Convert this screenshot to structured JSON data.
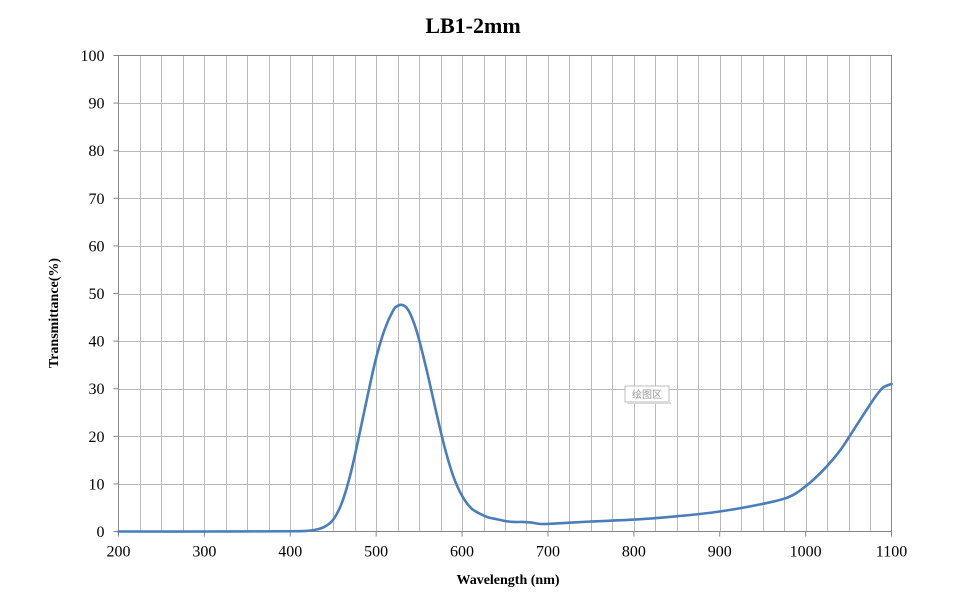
{
  "chart_data": {
    "type": "line",
    "title": "LB1-2mm",
    "xlabel": "Wavelength (nm)",
    "ylabel": "Transmittance(%)",
    "xlim": [
      200,
      1100
    ],
    "ylim": [
      0,
      100
    ],
    "x_ticks": [
      200,
      300,
      400,
      500,
      600,
      700,
      800,
      900,
      1000,
      1100
    ],
    "y_ticks": [
      0,
      10,
      20,
      30,
      40,
      50,
      60,
      70,
      80,
      90,
      100
    ],
    "x_minor_step": 25,
    "grid": true,
    "legend": "none",
    "plot_area_label": "绘图区",
    "series": [
      {
        "color": "#4a7ebb",
        "x": [
          200,
          300,
          400,
          420,
          430,
          440,
          450,
          460,
          470,
          480,
          490,
          500,
          510,
          520,
          525,
          530,
          535,
          540,
          545,
          550,
          560,
          570,
          580,
          590,
          600,
          610,
          620,
          630,
          640,
          650,
          660,
          670,
          680,
          690,
          700,
          720,
          750,
          800,
          850,
          900,
          950,
          980,
          1000,
          1020,
          1040,
          1060,
          1080,
          1090,
          1100
        ],
        "y": [
          0,
          0,
          0.05,
          0.15,
          0.4,
          1.0,
          2.5,
          6.0,
          12.0,
          20.0,
          28.5,
          36.5,
          42.5,
          46.5,
          47.4,
          47.6,
          47.1,
          45.6,
          43.3,
          40.3,
          33.0,
          25.0,
          17.5,
          11.5,
          7.5,
          5.0,
          3.8,
          3.0,
          2.6,
          2.2,
          2.0,
          2.0,
          1.9,
          1.6,
          1.6,
          1.8,
          2.1,
          2.5,
          3.2,
          4.2,
          5.8,
          7.2,
          9.5,
          12.8,
          17.0,
          22.5,
          28.0,
          30.2,
          31.0
        ]
      }
    ]
  }
}
